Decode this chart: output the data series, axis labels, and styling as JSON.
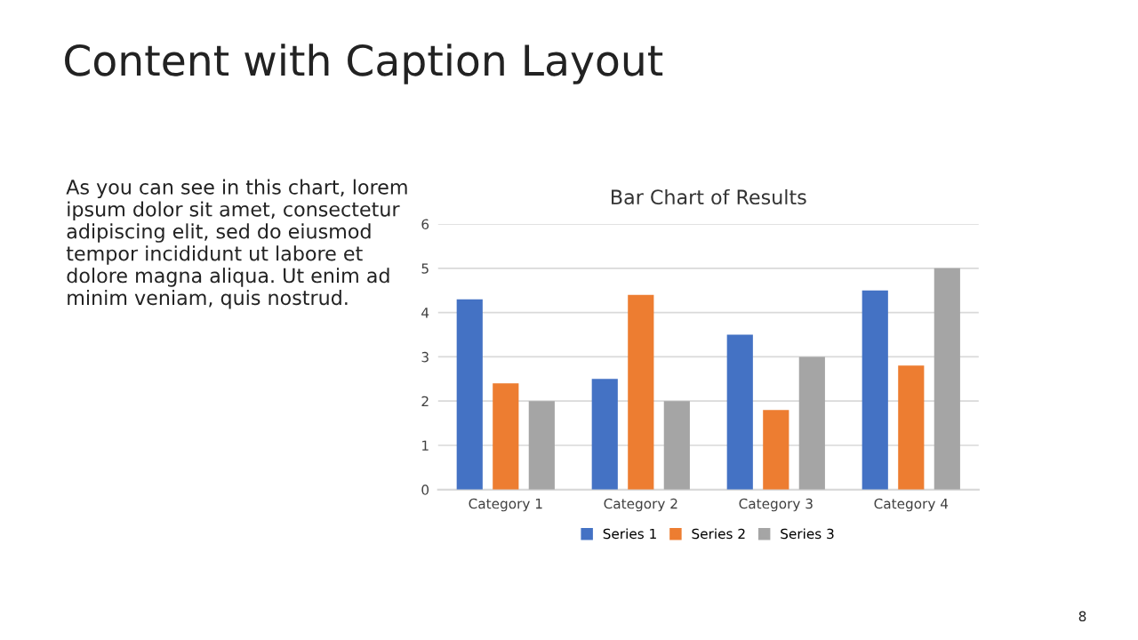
{
  "chart_data": {
    "type": "bar",
    "title": "Bar Chart of Results",
    "categories": [
      "Category 1",
      "Category 2",
      "Category 3",
      "Category 4"
    ],
    "series": [
      {
        "name": "Series 1",
        "color": "#4472c4",
        "values": [
          4.3,
          2.5,
          3.5,
          4.5
        ]
      },
      {
        "name": "Series 2",
        "color": "#ed7d31",
        "values": [
          2.4,
          4.4,
          1.8,
          2.8
        ]
      },
      {
        "name": "Series 3",
        "color": "#a5a5a5",
        "values": [
          2,
          2,
          3,
          5
        ]
      }
    ],
    "ylim": [
      0,
      6
    ],
    "yticks": [
      0,
      1,
      2,
      3,
      4,
      5,
      6
    ],
    "grid": "y",
    "legend": "bottom",
    "annotations": [
      "Content with Caption Layout",
      "As you can see in this chart, lorem\nipsum dolor sit amet, consectetur\nadipiscing elit, sed do eiusmod\ntempor incididunt ut labore et\ndolore magna aliqua. Ut enim ad\nminim veniam, quis nostrud.",
      "8"
    ]
  }
}
